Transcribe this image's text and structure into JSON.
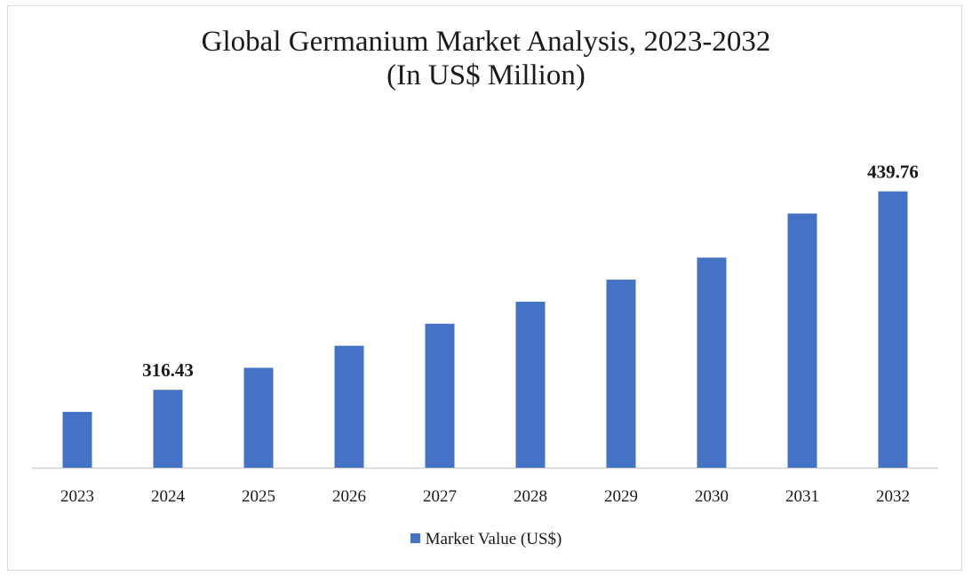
{
  "chart_data": {
    "type": "bar",
    "title": "Global Germanium Market Analysis, 2023-2032",
    "subtitle": "(In US$ Million)",
    "categories": [
      "2023",
      "2024",
      "2025",
      "2026",
      "2027",
      "2028",
      "2029",
      "2030",
      "2031",
      "2032"
    ],
    "series": [
      {
        "name": "Market Value (US$)",
        "values": [
          302.7,
          316.43,
          330.1,
          343.8,
          357.5,
          371.2,
          384.9,
          398.6,
          426.0,
          439.76
        ],
        "data_labels": {
          "1": "316.43",
          "9": "439.76"
        }
      }
    ],
    "ylim": [
      268,
      455
    ],
    "grid": false,
    "legend_position": "bottom",
    "bar_color": "#4472c4"
  }
}
